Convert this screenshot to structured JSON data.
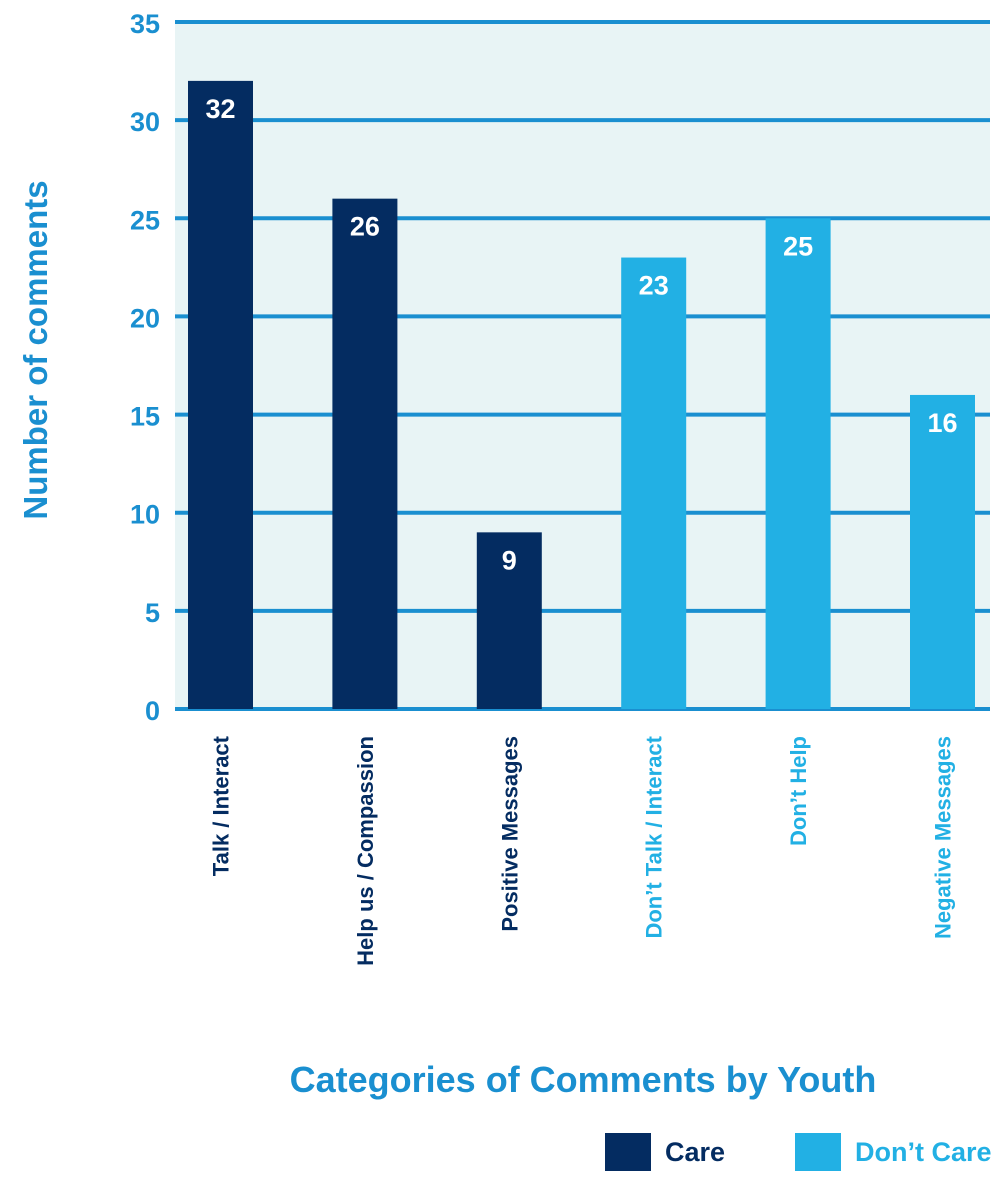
{
  "chart_data": {
    "type": "bar",
    "categories": [
      "Talk / Interact",
      "Help us / Compassion",
      "Positive Messages",
      "Don’t Talk / Interact",
      "Don’t Help",
      "Negative Messages"
    ],
    "values": [
      32,
      26,
      9,
      23,
      25,
      16
    ],
    "bar_groups": [
      "Care",
      "Care",
      "Care",
      "Don’t Care",
      "Don’t Care",
      "Don’t Care"
    ],
    "data_labels": [
      "32",
      "26",
      "9",
      "23",
      "25",
      "16"
    ],
    "title": "",
    "xlabel": "Categories of Comments by Youth",
    "ylabel": "Number of comments",
    "ylim": [
      0,
      35
    ],
    "yticks": [
      0,
      5,
      10,
      15,
      20,
      25,
      30,
      35
    ],
    "grid": true,
    "legend_position": "bottom-right",
    "legend": [
      {
        "name": "Care",
        "color": "#042c61"
      },
      {
        "name": "Don’t Care",
        "color": "#22b0e4"
      }
    ],
    "colors": {
      "care": "#042c61",
      "dont_care": "#22b0e4",
      "axis_text": "#1a8fd0",
      "gridline": "#1a8fd0",
      "plot_background": "#e8f4f5"
    }
  }
}
